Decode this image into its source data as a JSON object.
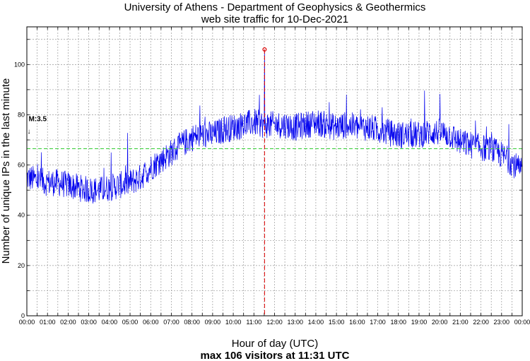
{
  "chart_data": {
    "type": "line",
    "title": "University of Athens - Department of Geophysics & Geothermics",
    "subtitle": "web site traffic for 10-Dec-2021",
    "xlabel": "Hour of day (UTC)",
    "ylabel": "Number of unique IPs in the last minute",
    "footer": "max 106 visitors at 11:31 UTC",
    "x_tick_labels": [
      "00:00",
      "01:00",
      "02:00",
      "03:00",
      "04:00",
      "05:00",
      "06:00",
      "07:00",
      "08:00",
      "09:00",
      "10:00",
      "11:00",
      "12:00",
      "13:00",
      "14:00",
      "15:00",
      "16:00",
      "17:00",
      "18:00",
      "19:00",
      "20:00",
      "21:00",
      "22:00",
      "23:00",
      "00:00"
    ],
    "y_ticks": [
      0,
      20,
      40,
      60,
      80,
      100
    ],
    "xlim_hours": [
      0,
      24
    ],
    "ylim": [
      0,
      115
    ],
    "grid": true,
    "series": [
      {
        "color": "#0000ee",
        "x_hours": [
          0,
          0.5,
          1,
          1.5,
          2,
          2.5,
          3,
          3.5,
          4,
          4.5,
          5,
          5.5,
          6,
          6.5,
          7,
          7.5,
          8,
          8.5,
          9,
          9.5,
          10,
          10.5,
          11,
          11.5,
          12,
          12.5,
          13,
          13.5,
          14,
          14.5,
          15,
          15.5,
          16,
          16.5,
          17,
          17.5,
          18,
          18.5,
          19,
          19.5,
          20,
          20.5,
          21,
          21.5,
          22,
          22.5,
          23,
          23.5,
          24
        ],
        "values": [
          55,
          54,
          53,
          53,
          52,
          51,
          50,
          50,
          51,
          52,
          53,
          55,
          59,
          62,
          65,
          68,
          71,
          72,
          72,
          74,
          75,
          76,
          77,
          76,
          76,
          76,
          75,
          76,
          77,
          76,
          75,
          76,
          75,
          75,
          74,
          73,
          72,
          72,
          72,
          73,
          73,
          72,
          69,
          68,
          67,
          66,
          64,
          61,
          57
        ]
      }
    ],
    "mean_line": {
      "value": 66.5,
      "color": "#33cc33"
    },
    "max_marker": {
      "value": 106,
      "x_hours": 11.5167,
      "color": "#dd0000"
    },
    "annotation": {
      "text": "M:3.5",
      "x_hours": 0.05,
      "arrow": "↓"
    }
  }
}
